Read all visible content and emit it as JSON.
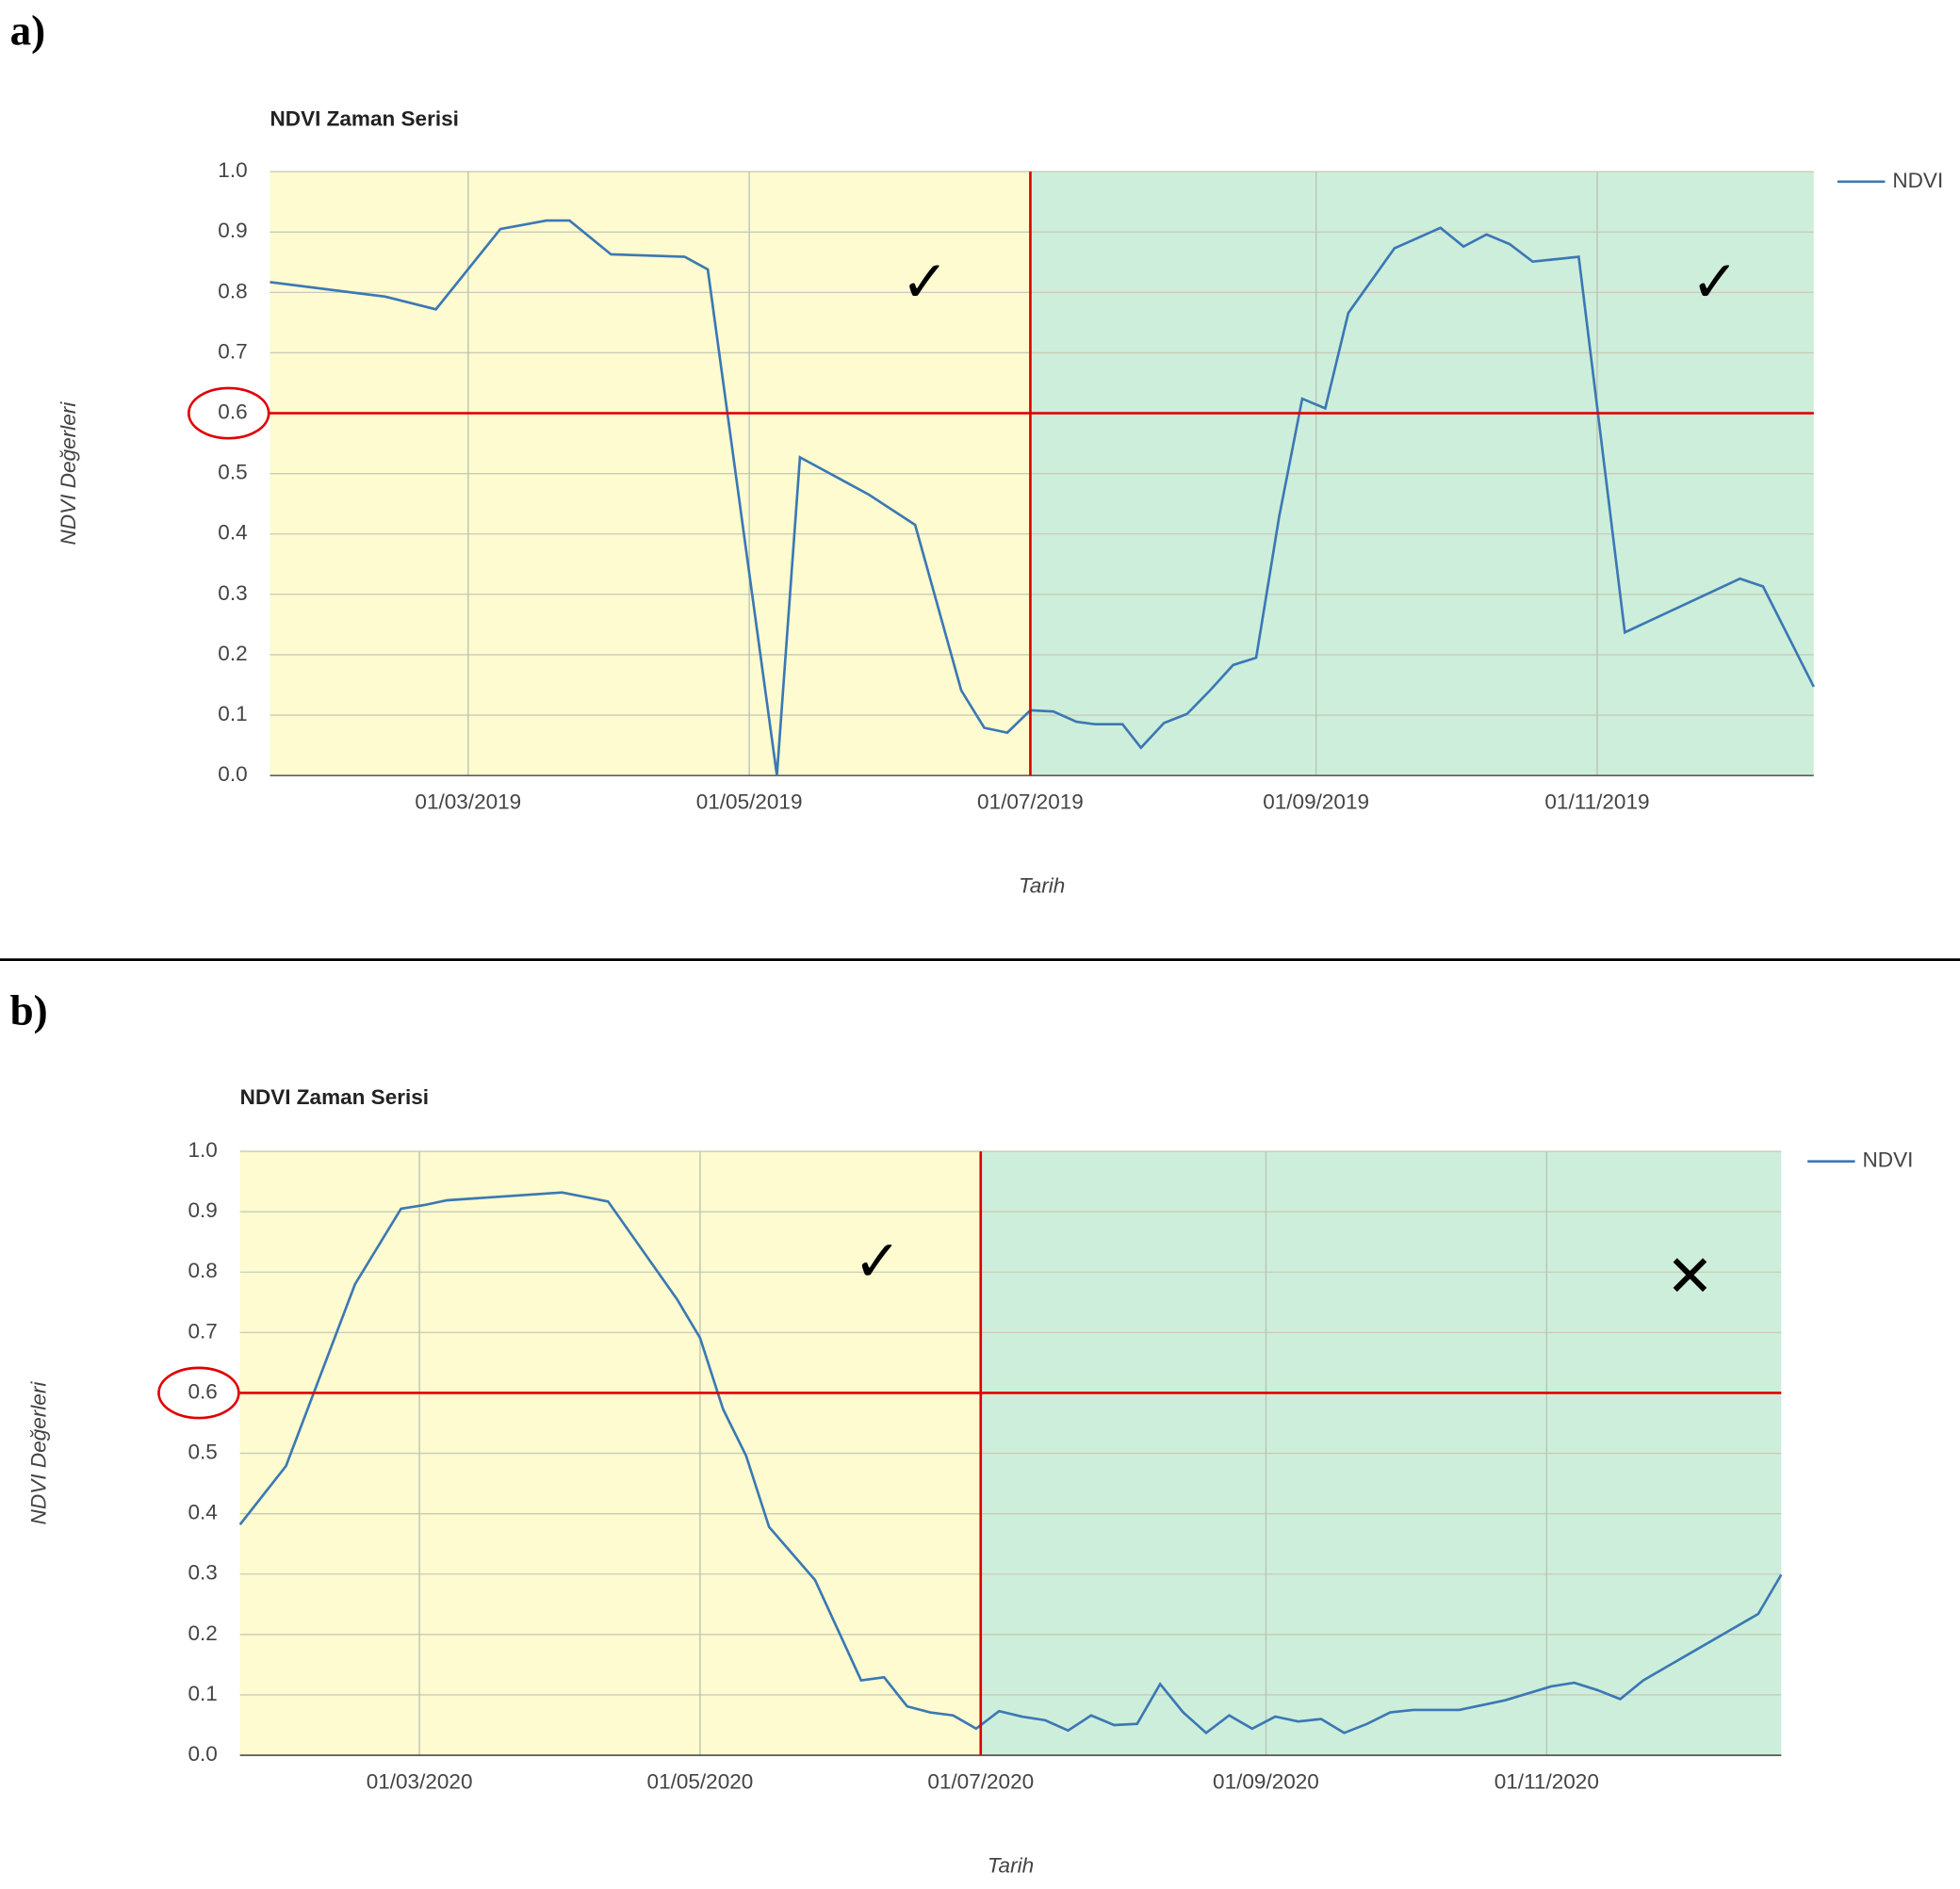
{
  "chart_data": [
    {
      "type": "line",
      "panel_label": "a)",
      "title": "NDVI Zaman Serisi",
      "xlabel": "Tarih",
      "ylabel": "NDVI Değerleri",
      "xlim": [
        "17/01/2019",
        "18/12/2019"
      ],
      "xticks": [
        "01/03/2019",
        "01/05/2019",
        "01/07/2019",
        "01/09/2019",
        "01/11/2019"
      ],
      "ylim": [
        0,
        1
      ],
      "yticks": [
        {
          "value": 0,
          "label": "0.0"
        },
        0.1,
        0.2,
        0.3,
        0.4,
        0.5,
        0.6,
        0.7,
        0.8,
        0.9,
        {
          "value": 1,
          "label": "1.0"
        }
      ],
      "grid": true,
      "legend": "right",
      "threshold": 0.6,
      "split_x": "01/07/2019",
      "threshold_color": "#e00000",
      "region_colors": [
        "#fdfbcf",
        "#cdeedb"
      ],
      "annotations": [
        "✓",
        "✓"
      ],
      "x": [
        "17/01/2019",
        "11/02/2019",
        "22/02/2019",
        "08/03/2019",
        "18/03/2019",
        "23/03/2019",
        "01/04/2019",
        "17/04/2019",
        "22/04/2019",
        "07/05/2019",
        "12/05/2019",
        "27/05/2019",
        "06/06/2019",
        "16/06/2019",
        "21/06/2019",
        "26/06/2019",
        "01/07/2019",
        "06/07/2019",
        "11/07/2019",
        "15/07/2019",
        "21/07/2019",
        "25/07/2019",
        "30/07/2019",
        "04/08/2019",
        "09/08/2019",
        "14/08/2019",
        "19/08/2019",
        "24/08/2019",
        "29/08/2019",
        "03/09/2019",
        "08/09/2019",
        "18/09/2019",
        "28/09/2019",
        "03/10/2019",
        "08/10/2019",
        "13/10/2019",
        "18/10/2019",
        "28/10/2019",
        "07/11/2019",
        "02/12/2019",
        "07/12/2019",
        "18/12/2019"
      ],
      "series": [
        {
          "name": "NDVI",
          "color": "#3b78b4",
          "values": [
            0.817,
            0.793,
            0.772,
            0.905,
            0.919,
            0.919,
            0.863,
            0.859,
            0.838,
            0.0,
            0.527,
            0.465,
            0.415,
            0.141,
            0.079,
            0.071,
            0.108,
            0.106,
            0.089,
            0.085,
            0.085,
            0.046,
            0.087,
            0.102,
            0.141,
            0.183,
            0.195,
            0.429,
            0.624,
            0.608,
            0.766,
            0.873,
            0.907,
            0.876,
            0.896,
            0.88,
            0.851,
            0.859,
            0.237,
            0.326,
            0.313,
            0.147
          ]
        }
      ]
    },
    {
      "type": "line",
      "panel_label": "b)",
      "title": "NDVI Zaman Serisi",
      "xlabel": "Tarih",
      "ylabel": "NDVI Değerleri",
      "xlim": [
        "22/01/2020",
        "22/12/2020"
      ],
      "xticks": [
        "01/03/2020",
        "01/05/2020",
        "01/07/2020",
        "01/09/2020",
        "01/11/2020"
      ],
      "ylim": [
        0,
        1
      ],
      "yticks": [
        {
          "value": 0,
          "label": "0.0"
        },
        0.1,
        0.2,
        0.3,
        0.4,
        0.5,
        0.6,
        0.7,
        0.8,
        0.9,
        {
          "value": 1,
          "label": "1.0"
        }
      ],
      "grid": true,
      "legend": "right",
      "threshold": 0.6,
      "split_x": "01/07/2020",
      "threshold_color": "#e00000",
      "region_colors": [
        "#fdfbcf",
        "#cdeedb"
      ],
      "annotations": [
        "✓",
        "✕"
      ],
      "x": [
        "22/01/2020",
        "01/02/2020",
        "16/02/2020",
        "26/02/2020",
        "02/03/2020",
        "07/03/2020",
        "01/04/2020",
        "11/04/2020",
        "26/04/2020",
        "01/05/2020",
        "06/05/2020",
        "11/05/2020",
        "16/05/2020",
        "26/05/2020",
        "05/06/2020",
        "10/06/2020",
        "15/06/2020",
        "20/06/2020",
        "25/06/2020",
        "30/06/2020",
        "05/07/2020",
        "10/07/2020",
        "15/07/2020",
        "20/07/2020",
        "25/07/2020",
        "30/07/2020",
        "04/08/2020",
        "09/08/2020",
        "14/08/2020",
        "19/08/2020",
        "24/08/2020",
        "29/08/2020",
        "03/09/2020",
        "08/09/2020",
        "13/09/2020",
        "18/09/2020",
        "23/09/2020",
        "28/09/2020",
        "03/10/2020",
        "13/10/2020",
        "23/10/2020",
        "02/11/2020",
        "07/11/2020",
        "12/11/2020",
        "17/11/2020",
        "22/11/2020",
        "17/12/2020",
        "22/12/2020"
      ],
      "series": [
        {
          "name": "NDVI",
          "color": "#3b78b4",
          "values": [
            0.382,
            0.479,
            0.78,
            0.905,
            0.911,
            0.919,
            0.932,
            0.917,
            0.755,
            0.691,
            0.573,
            0.496,
            0.378,
            0.29,
            0.124,
            0.129,
            0.081,
            0.071,
            0.066,
            0.044,
            0.073,
            0.064,
            0.058,
            0.041,
            0.066,
            0.05,
            0.052,
            0.118,
            0.071,
            0.037,
            0.066,
            0.044,
            0.064,
            0.056,
            0.06,
            0.037,
            0.052,
            0.071,
            0.075,
            0.075,
            0.091,
            0.114,
            0.12,
            0.108,
            0.093,
            0.124,
            0.234,
            0.299
          ]
        }
      ]
    }
  ]
}
